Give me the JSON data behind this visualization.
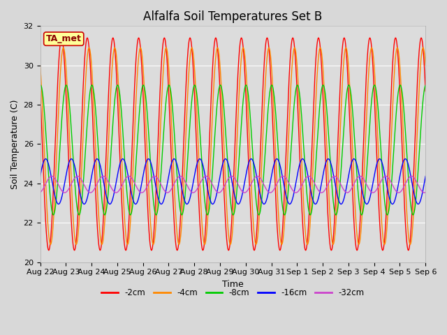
{
  "title": "Alfalfa Soil Temperatures Set B",
  "xlabel": "Time",
  "ylabel": "Soil Temperature (C)",
  "ylim": [
    20,
    32
  ],
  "yticks": [
    20,
    22,
    24,
    26,
    28,
    30,
    32
  ],
  "x_labels": [
    "Aug 22",
    "Aug 23",
    "Aug 24",
    "Aug 25",
    "Aug 26",
    "Aug 27",
    "Aug 28",
    "Aug 29",
    "Aug 30",
    "Aug 31",
    "Sep 1",
    "Sep 2",
    "Sep 3",
    "Sep 4",
    "Sep 5",
    "Sep 6"
  ],
  "ta_met_label": "TA_met",
  "fig_facecolor": "#d8d8d8",
  "plot_facecolor": "#dcdcdc",
  "series": [
    {
      "label": "-2cm",
      "color": "#ff0000",
      "amplitude": 5.4,
      "mean": 26.0,
      "phase_shift": 0.0,
      "noise_amp": 0.0
    },
    {
      "label": "-4cm",
      "color": "#ff8800",
      "amplitude": 5.0,
      "mean": 25.9,
      "phase_shift": 0.07,
      "noise_amp": 0.0
    },
    {
      "label": "-8cm",
      "color": "#00cc00",
      "amplitude": 3.3,
      "mean": 25.7,
      "phase_shift": 0.18,
      "noise_amp": 0.0
    },
    {
      "label": "-16cm",
      "color": "#0000ff",
      "amplitude": 1.15,
      "mean": 24.1,
      "phase_shift": 0.38,
      "noise_amp": 0.0
    },
    {
      "label": "-32cm",
      "color": "#cc44cc",
      "amplitude": 0.42,
      "mean": 23.95,
      "phase_shift": 0.62,
      "noise_amp": 0.0
    }
  ],
  "n_days": 15,
  "points_per_day": 144,
  "grid_color": "#ffffff",
  "title_fontsize": 12,
  "axis_label_fontsize": 9,
  "tick_fontsize": 8,
  "linewidth": 1.0
}
